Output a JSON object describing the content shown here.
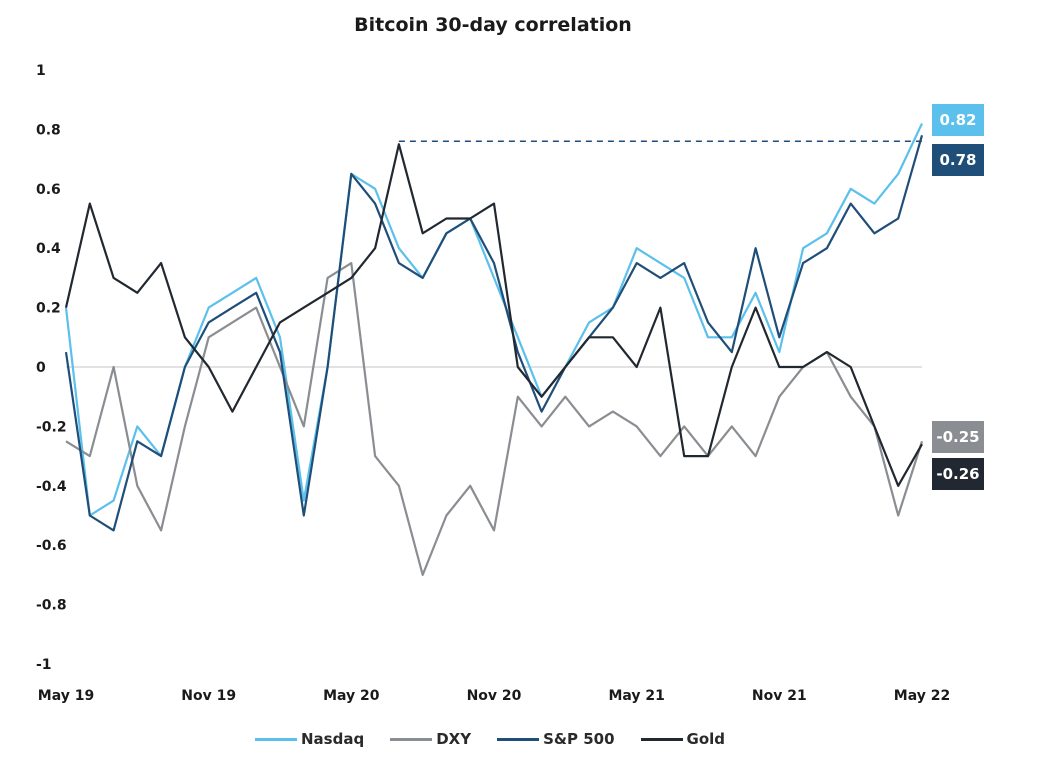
{
  "chart_data": {
    "type": "line",
    "title": "Bitcoin 30-day correlation",
    "xlabel": "",
    "ylabel": "",
    "ylim": [
      -1,
      1
    ],
    "yticks": [
      "1",
      "0.8",
      "0.6",
      "0.4",
      "0.2",
      "0",
      "-0.2",
      "-0.4",
      "-0.6",
      "-0.8",
      "-1"
    ],
    "ytick_values": [
      1,
      0.8,
      0.6,
      0.4,
      0.2,
      0,
      -0.2,
      -0.4,
      -0.6,
      -0.8,
      -1
    ],
    "xticks": [
      "May 19",
      "Nov 19",
      "May 20",
      "Nov 20",
      "May 21",
      "Nov 21",
      "May 22"
    ],
    "xtick_dates": [
      "2019-05",
      "2019-11",
      "2020-05",
      "2020-11",
      "2021-05",
      "2021-11",
      "2022-05"
    ],
    "x": [
      "2019-05",
      "2019-06",
      "2019-07",
      "2019-08",
      "2019-09",
      "2019-10",
      "2019-11",
      "2019-12",
      "2020-01",
      "2020-02",
      "2020-03",
      "2020-04",
      "2020-05",
      "2020-06",
      "2020-07",
      "2020-08",
      "2020-09",
      "2020-10",
      "2020-11",
      "2020-12",
      "2021-01",
      "2021-02",
      "2021-03",
      "2021-04",
      "2021-05",
      "2021-06",
      "2021-07",
      "2021-08",
      "2021-09",
      "2021-10",
      "2021-11",
      "2021-12",
      "2022-01",
      "2022-02",
      "2022-03",
      "2022-04",
      "2022-05"
    ],
    "grid": false,
    "legend_position": "bottom",
    "series": [
      {
        "name": "Nasdaq",
        "color": "#5bc0eb",
        "end_value": "0.82",
        "values": [
          0.2,
          -0.5,
          -0.45,
          -0.2,
          -0.3,
          0.0,
          0.2,
          0.25,
          0.3,
          0.1,
          -0.45,
          0.0,
          0.65,
          0.6,
          0.4,
          0.3,
          0.45,
          0.5,
          0.3,
          0.1,
          -0.1,
          0.0,
          0.15,
          0.2,
          0.4,
          0.35,
          0.3,
          0.1,
          0.1,
          0.25,
          0.05,
          0.4,
          0.45,
          0.6,
          0.55,
          0.65,
          0.82
        ]
      },
      {
        "name": "DXY",
        "color": "#8a8d91",
        "end_value": "-0.25",
        "values": [
          -0.25,
          -0.3,
          0.0,
          -0.4,
          -0.55,
          -0.2,
          0.1,
          0.15,
          0.2,
          0.0,
          -0.2,
          0.3,
          0.35,
          -0.3,
          -0.4,
          -0.7,
          -0.5,
          -0.4,
          -0.55,
          -0.1,
          -0.2,
          -0.1,
          -0.2,
          -0.15,
          -0.2,
          -0.3,
          -0.2,
          -0.3,
          -0.2,
          -0.3,
          -0.1,
          0.0,
          0.05,
          -0.1,
          -0.2,
          -0.5,
          -0.25
        ]
      },
      {
        "name": "S&P 500",
        "color": "#1f4e79",
        "end_value": "0.78",
        "values": [
          0.05,
          -0.5,
          -0.55,
          -0.25,
          -0.3,
          0.0,
          0.15,
          0.2,
          0.25,
          0.05,
          -0.5,
          0.0,
          0.65,
          0.55,
          0.35,
          0.3,
          0.45,
          0.5,
          0.35,
          0.05,
          -0.15,
          0.0,
          0.1,
          0.2,
          0.35,
          0.3,
          0.35,
          0.15,
          0.05,
          0.4,
          0.1,
          0.35,
          0.4,
          0.55,
          0.45,
          0.5,
          0.78
        ]
      },
      {
        "name": "Gold",
        "color": "#222831",
        "end_value": "-0.26",
        "values": [
          0.2,
          0.55,
          0.3,
          0.25,
          0.35,
          0.1,
          0.0,
          -0.15,
          0.0,
          0.15,
          0.2,
          0.25,
          0.3,
          0.4,
          0.75,
          0.45,
          0.5,
          0.5,
          0.55,
          0.0,
          -0.1,
          0.0,
          0.1,
          0.1,
          0.0,
          0.2,
          -0.3,
          -0.3,
          0.0,
          0.2,
          0.0,
          0.0,
          0.05,
          0.0,
          -0.2,
          -0.4,
          -0.26
        ]
      }
    ],
    "annotations": [
      {
        "type": "dashed-line",
        "y": 0.76,
        "from": "2020-07",
        "to": "2022-05",
        "color": "#1f4e79"
      }
    ]
  }
}
